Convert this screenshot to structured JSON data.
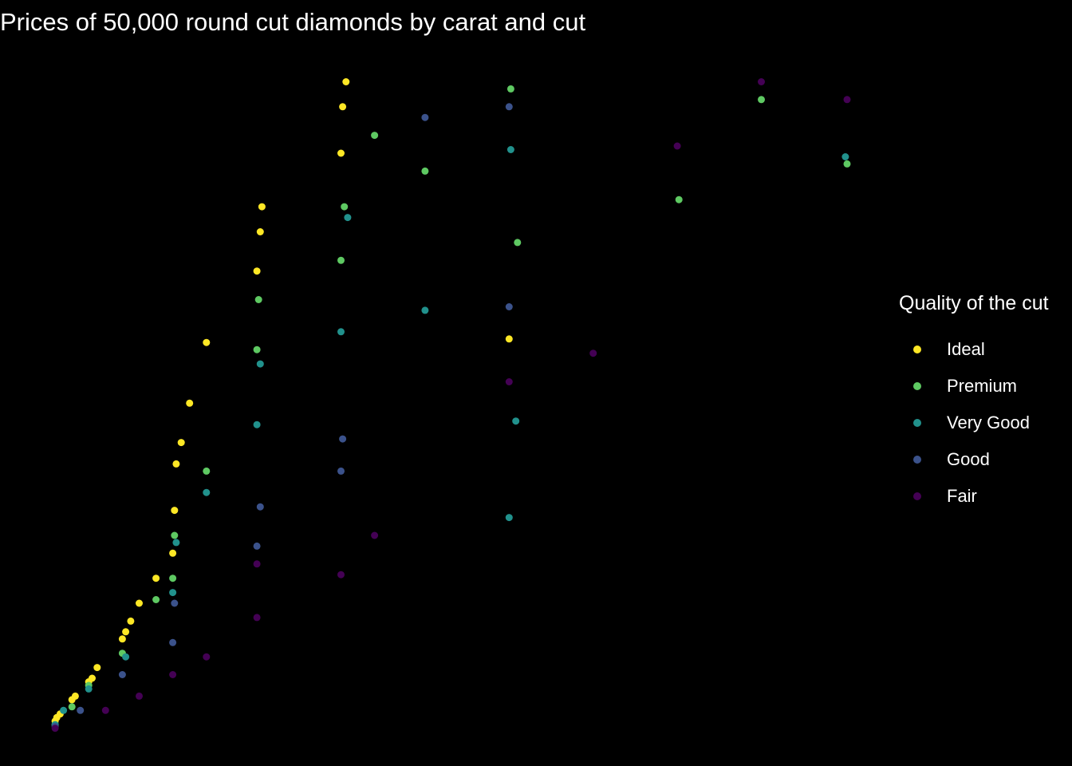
{
  "chart_data": {
    "type": "scatter",
    "title": "Prices of 50,000 round cut diamonds by carat and cut",
    "xlabel": "",
    "ylabel": "",
    "axes_visible": false,
    "grid": false,
    "xlim": [
      0.2,
      5.01
    ],
    "ylim": [
      326,
      18823
    ],
    "legend": {
      "title": "Quality of the cut",
      "placement": "right",
      "entries": [
        {
          "name": "Ideal",
          "color": "#FDE725"
        },
        {
          "name": "Premium",
          "color": "#5EC962"
        },
        {
          "name": "Very Good",
          "color": "#21918C"
        },
        {
          "name": "Good",
          "color": "#3B528B"
        },
        {
          "name": "Fair",
          "color": "#440154"
        }
      ]
    },
    "series": [
      {
        "name": "Ideal",
        "color": "#FDE725",
        "points": [
          [
            0.3,
            600
          ],
          [
            0.31,
            700
          ],
          [
            0.33,
            800
          ],
          [
            0.4,
            1200
          ],
          [
            0.42,
            1300
          ],
          [
            0.5,
            1700
          ],
          [
            0.52,
            1800
          ],
          [
            0.55,
            2100
          ],
          [
            0.7,
            2900
          ],
          [
            0.72,
            3100
          ],
          [
            0.75,
            3400
          ],
          [
            0.8,
            3900
          ],
          [
            0.9,
            4600
          ],
          [
            1.0,
            5300
          ],
          [
            1.01,
            6500
          ],
          [
            1.02,
            7800
          ],
          [
            1.05,
            8400
          ],
          [
            1.1,
            9500
          ],
          [
            1.2,
            11200
          ],
          [
            1.5,
            13200
          ],
          [
            1.52,
            14300
          ],
          [
            1.53,
            15000
          ],
          [
            2.0,
            16500
          ],
          [
            2.01,
            17800
          ],
          [
            2.03,
            18500
          ],
          [
            3.0,
            11300
          ]
        ]
      },
      {
        "name": "Premium",
        "color": "#5EC962",
        "points": [
          [
            0.3,
            500
          ],
          [
            0.4,
            1000
          ],
          [
            0.5,
            1600
          ],
          [
            0.7,
            2500
          ],
          [
            0.9,
            4000
          ],
          [
            1.0,
            4600
          ],
          [
            1.01,
            5800
          ],
          [
            1.2,
            7600
          ],
          [
            1.5,
            11000
          ],
          [
            1.51,
            12400
          ],
          [
            2.0,
            13500
          ],
          [
            2.02,
            15000
          ],
          [
            2.2,
            17000
          ],
          [
            2.5,
            16000
          ],
          [
            3.01,
            18300
          ],
          [
            3.05,
            14000
          ],
          [
            4.01,
            15200
          ],
          [
            4.5,
            18000
          ],
          [
            5.01,
            16200
          ]
        ]
      },
      {
        "name": "Very Good",
        "color": "#21918C",
        "points": [
          [
            0.3,
            500
          ],
          [
            0.35,
            900
          ],
          [
            0.5,
            1500
          ],
          [
            0.72,
            2400
          ],
          [
            1.0,
            4200
          ],
          [
            1.02,
            5600
          ],
          [
            1.2,
            7000
          ],
          [
            1.5,
            8900
          ],
          [
            1.52,
            10600
          ],
          [
            2.0,
            11500
          ],
          [
            2.04,
            14700
          ],
          [
            2.5,
            12100
          ],
          [
            3.0,
            6300
          ],
          [
            3.01,
            16600
          ],
          [
            3.04,
            9000
          ],
          [
            5.0,
            16400
          ]
        ]
      },
      {
        "name": "Good",
        "color": "#3B528B",
        "points": [
          [
            0.3,
            450
          ],
          [
            0.45,
            900
          ],
          [
            0.7,
            1900
          ],
          [
            1.0,
            2800
          ],
          [
            1.01,
            3900
          ],
          [
            1.5,
            5500
          ],
          [
            1.52,
            6600
          ],
          [
            2.0,
            7600
          ],
          [
            2.01,
            8500
          ],
          [
            2.5,
            17500
          ],
          [
            3.0,
            12200
          ],
          [
            3.0,
            17800
          ]
        ]
      },
      {
        "name": "Fair",
        "color": "#440154",
        "points": [
          [
            0.3,
            400
          ],
          [
            0.6,
            900
          ],
          [
            0.8,
            1300
          ],
          [
            1.0,
            1900
          ],
          [
            1.2,
            2400
          ],
          [
            1.5,
            3500
          ],
          [
            1.5,
            5000
          ],
          [
            2.0,
            4700
          ],
          [
            2.2,
            5800
          ],
          [
            3.0,
            10100
          ],
          [
            3.5,
            10900
          ],
          [
            4.0,
            16700
          ],
          [
            4.5,
            18500
          ],
          [
            5.01,
            18000
          ]
        ]
      }
    ]
  }
}
